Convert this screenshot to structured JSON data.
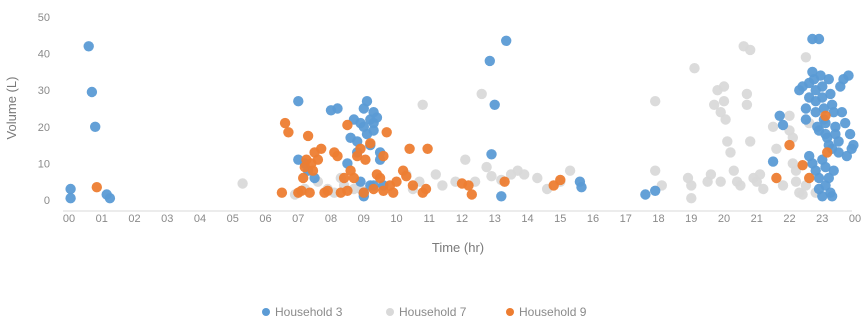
{
  "chart_data": {
    "type": "scatter",
    "xlabel": "Time (hr)",
    "ylabel": "Volume (L)",
    "xlim": [
      0,
      24
    ],
    "ylim": [
      0,
      50
    ],
    "x_tick_labels": [
      "00",
      "01",
      "02",
      "03",
      "04",
      "05",
      "06",
      "07",
      "08",
      "09",
      "10",
      "11",
      "12",
      "13",
      "14",
      "15",
      "16",
      "17",
      "18",
      "19",
      "20",
      "21",
      "22",
      "23",
      "00"
    ],
    "y_ticks": [
      0,
      10,
      20,
      30,
      40,
      50
    ],
    "grid": false,
    "legend_position": "bottom",
    "series": [
      {
        "name": "Household 3",
        "color": "#5b9bd5",
        "points": [
          [
            0.05,
            3
          ],
          [
            0.05,
            0.5
          ],
          [
            0.6,
            42
          ],
          [
            0.7,
            29.5
          ],
          [
            0.8,
            20
          ],
          [
            1.15,
            1.5
          ],
          [
            1.25,
            0.5
          ],
          [
            7.0,
            27
          ],
          [
            7.0,
            11
          ],
          [
            7.2,
            10
          ],
          [
            7.3,
            8
          ],
          [
            7.5,
            6
          ],
          [
            8.0,
            24.5
          ],
          [
            8.2,
            25
          ],
          [
            8.5,
            10
          ],
          [
            8.6,
            17
          ],
          [
            8.7,
            22
          ],
          [
            8.8,
            16
          ],
          [
            8.8,
            13
          ],
          [
            8.9,
            21
          ],
          [
            9.0,
            25
          ],
          [
            9.0,
            20
          ],
          [
            9.1,
            27
          ],
          [
            9.1,
            18
          ],
          [
            9.2,
            22
          ],
          [
            9.2,
            15
          ],
          [
            9.3,
            24
          ],
          [
            9.3,
            21
          ],
          [
            9.3,
            19
          ],
          [
            9.4,
            22.5
          ],
          [
            9.5,
            13
          ],
          [
            9.5,
            11
          ],
          [
            8.9,
            5
          ],
          [
            9.2,
            4
          ],
          [
            9.3,
            4
          ],
          [
            9.6,
            4
          ],
          [
            9.0,
            1
          ],
          [
            9.0,
            2
          ],
          [
            12.85,
            38
          ],
          [
            13.0,
            26
          ],
          [
            13.35,
            43.5
          ],
          [
            12.9,
            12.5
          ],
          [
            13.2,
            1
          ],
          [
            15.6,
            5
          ],
          [
            15.65,
            3.5
          ],
          [
            17.6,
            1.5
          ],
          [
            17.9,
            2.5
          ],
          [
            21.7,
            23
          ],
          [
            21.8,
            20.5
          ],
          [
            21.5,
            10.5
          ],
          [
            22.3,
            30
          ],
          [
            22.4,
            31
          ],
          [
            22.5,
            25
          ],
          [
            22.5,
            22
          ],
          [
            22.6,
            32
          ],
          [
            22.6,
            28
          ],
          [
            22.7,
            35
          ],
          [
            22.7,
            44
          ],
          [
            22.75,
            33
          ],
          [
            22.8,
            30
          ],
          [
            22.8,
            27
          ],
          [
            22.8,
            24
          ],
          [
            22.85,
            20
          ],
          [
            22.9,
            19
          ],
          [
            22.9,
            44
          ],
          [
            22.95,
            34
          ],
          [
            23.0,
            31
          ],
          [
            23.0,
            28
          ],
          [
            23.05,
            25
          ],
          [
            23.05,
            22
          ],
          [
            23.1,
            21
          ],
          [
            23.1,
            18
          ],
          [
            23.15,
            17
          ],
          [
            23.2,
            33
          ],
          [
            23.2,
            15
          ],
          [
            23.25,
            29
          ],
          [
            23.3,
            26
          ],
          [
            23.3,
            14
          ],
          [
            23.35,
            24
          ],
          [
            23.4,
            20
          ],
          [
            23.4,
            18
          ],
          [
            23.5,
            16
          ],
          [
            23.5,
            13
          ],
          [
            23.55,
            31
          ],
          [
            23.6,
            24
          ],
          [
            23.65,
            33
          ],
          [
            23.7,
            21
          ],
          [
            23.75,
            12
          ],
          [
            23.8,
            34
          ],
          [
            23.85,
            18
          ],
          [
            23.9,
            14
          ],
          [
            23.95,
            15
          ],
          [
            22.6,
            12
          ],
          [
            22.7,
            10
          ],
          [
            22.8,
            8
          ],
          [
            22.9,
            6
          ],
          [
            22.9,
            3
          ],
          [
            23.0,
            1
          ],
          [
            23.1,
            4
          ],
          [
            23.2,
            6
          ],
          [
            23.25,
            2
          ],
          [
            23.3,
            1
          ],
          [
            23.35,
            8
          ],
          [
            23.0,
            11
          ],
          [
            23.1,
            9
          ]
        ]
      },
      {
        "name": "Household 7",
        "color": "#d9d9d9",
        "points": [
          [
            5.3,
            4.5
          ],
          [
            6.9,
            1.5
          ],
          [
            7.2,
            3
          ],
          [
            7.6,
            5
          ],
          [
            7.9,
            3
          ],
          [
            8.1,
            2
          ],
          [
            8.3,
            6
          ],
          [
            8.4,
            4
          ],
          [
            8.7,
            3
          ],
          [
            8.95,
            2.5
          ],
          [
            10.3,
            7
          ],
          [
            10.5,
            3
          ],
          [
            10.7,
            5
          ],
          [
            10.8,
            26
          ],
          [
            11.2,
            7
          ],
          [
            11.4,
            4
          ],
          [
            11.8,
            5
          ],
          [
            12.1,
            11
          ],
          [
            12.4,
            5
          ],
          [
            12.6,
            29
          ],
          [
            12.75,
            9
          ],
          [
            12.9,
            6.5
          ],
          [
            13.2,
            5.5
          ],
          [
            13.5,
            7
          ],
          [
            13.7,
            8
          ],
          [
            13.9,
            7
          ],
          [
            14.3,
            6
          ],
          [
            14.6,
            3
          ],
          [
            15.0,
            5
          ],
          [
            15.3,
            8
          ],
          [
            17.9,
            27
          ],
          [
            17.9,
            8
          ],
          [
            18.1,
            4
          ],
          [
            18.9,
            6
          ],
          [
            19.0,
            4
          ],
          [
            19.0,
            0.5
          ],
          [
            19.1,
            36
          ],
          [
            19.5,
            5
          ],
          [
            19.6,
            7
          ],
          [
            19.7,
            26
          ],
          [
            19.8,
            30
          ],
          [
            19.9,
            24
          ],
          [
            19.9,
            5
          ],
          [
            20.0,
            31
          ],
          [
            20.0,
            27
          ],
          [
            20.05,
            22
          ],
          [
            20.1,
            16
          ],
          [
            20.2,
            13
          ],
          [
            20.3,
            8
          ],
          [
            20.4,
            5
          ],
          [
            20.5,
            4
          ],
          [
            20.6,
            42
          ],
          [
            20.7,
            29
          ],
          [
            20.7,
            26
          ],
          [
            20.8,
            41
          ],
          [
            20.8,
            16
          ],
          [
            20.9,
            6
          ],
          [
            21.0,
            5
          ],
          [
            21.1,
            7
          ],
          [
            21.2,
            3
          ],
          [
            21.5,
            20
          ],
          [
            21.6,
            14
          ],
          [
            21.8,
            4
          ],
          [
            22.0,
            19
          ],
          [
            22.0,
            23
          ],
          [
            22.1,
            17
          ],
          [
            22.1,
            10
          ],
          [
            22.2,
            8
          ],
          [
            22.2,
            5
          ],
          [
            22.3,
            2
          ],
          [
            22.4,
            1.5
          ],
          [
            22.5,
            39
          ],
          [
            22.5,
            4
          ],
          [
            22.6,
            21
          ],
          [
            22.8,
            2
          ]
        ]
      },
      {
        "name": "Household 9",
        "color": "#ed7d31",
        "points": [
          [
            0.85,
            3.5
          ],
          [
            6.5,
            2
          ],
          [
            6.6,
            21
          ],
          [
            6.7,
            18.5
          ],
          [
            7.0,
            2
          ],
          [
            7.1,
            2.5
          ],
          [
            7.15,
            6
          ],
          [
            7.2,
            9
          ],
          [
            7.25,
            11
          ],
          [
            7.3,
            17.5
          ],
          [
            7.35,
            2
          ],
          [
            7.4,
            10
          ],
          [
            7.45,
            8
          ],
          [
            7.5,
            13
          ],
          [
            7.6,
            11
          ],
          [
            7.7,
            14
          ],
          [
            7.8,
            2
          ],
          [
            7.9,
            2.5
          ],
          [
            8.1,
            13
          ],
          [
            8.2,
            12
          ],
          [
            8.3,
            2
          ],
          [
            8.4,
            6
          ],
          [
            8.5,
            2.5
          ],
          [
            8.5,
            20.5
          ],
          [
            8.6,
            8
          ],
          [
            8.7,
            6
          ],
          [
            8.8,
            12
          ],
          [
            8.9,
            14
          ],
          [
            9.0,
            2
          ],
          [
            9.05,
            11
          ],
          [
            9.2,
            15.5
          ],
          [
            9.3,
            3
          ],
          [
            9.4,
            7
          ],
          [
            9.5,
            6
          ],
          [
            9.6,
            2.5
          ],
          [
            9.6,
            12
          ],
          [
            9.7,
            18.5
          ],
          [
            9.8,
            4
          ],
          [
            9.9,
            2
          ],
          [
            10.0,
            5
          ],
          [
            10.2,
            8
          ],
          [
            10.3,
            6.5
          ],
          [
            10.4,
            14
          ],
          [
            10.5,
            4
          ],
          [
            10.8,
            2
          ],
          [
            10.9,
            3
          ],
          [
            10.95,
            14
          ],
          [
            12.0,
            4.5
          ],
          [
            12.2,
            4
          ],
          [
            12.3,
            1.5
          ],
          [
            13.3,
            5
          ],
          [
            14.8,
            4
          ],
          [
            15.0,
            5.5
          ],
          [
            21.6,
            6
          ],
          [
            22.0,
            15
          ],
          [
            22.4,
            9.5
          ],
          [
            22.6,
            6
          ],
          [
            23.1,
            23
          ],
          [
            23.15,
            13
          ]
        ]
      }
    ]
  }
}
